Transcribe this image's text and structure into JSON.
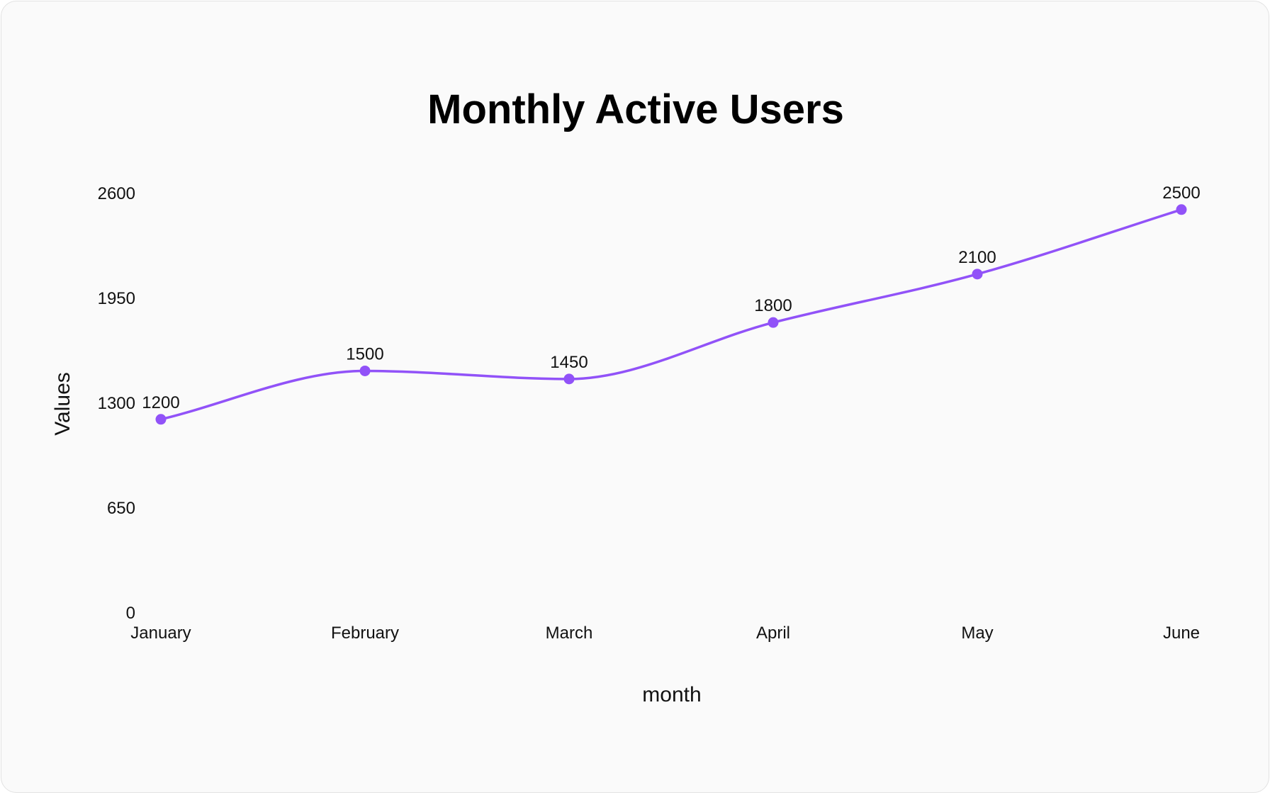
{
  "chart_data": {
    "type": "line",
    "title": "Monthly Active Users",
    "xlabel": "month",
    "ylabel": "Values",
    "categories": [
      "January",
      "February",
      "March",
      "April",
      "May",
      "June"
    ],
    "values": [
      1200,
      1500,
      1450,
      1800,
      2100,
      2500
    ],
    "ylim": [
      0,
      2600
    ],
    "yticks": [
      0,
      650,
      1300,
      1950,
      2600
    ],
    "grid": false,
    "legend": "none",
    "data_labels": true,
    "curve": "smooth",
    "colors": {
      "line": "#9152f8",
      "background": "#fafafa"
    }
  }
}
